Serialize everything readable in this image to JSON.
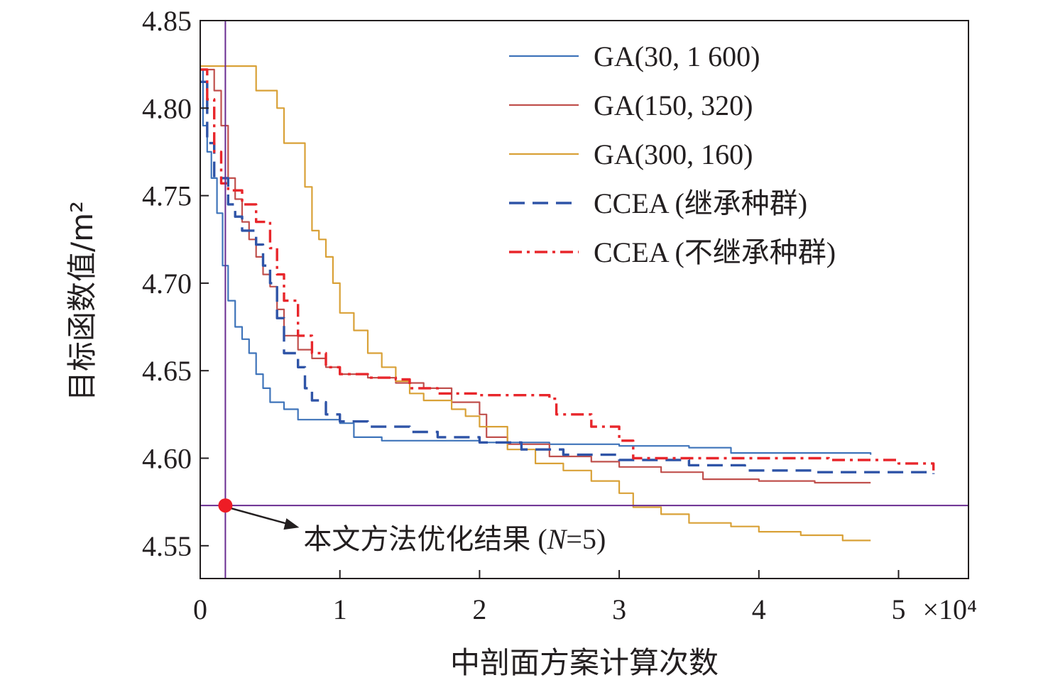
{
  "chart_data": {
    "type": "line",
    "xlabel": "中剖面方案计算次数",
    "ylabel": "目标函数值/m²",
    "x_multiplier": "×10⁴",
    "xlim": [
      0,
      5.5
    ],
    "ylim": [
      4.53,
      4.85
    ],
    "x_ticks": [
      "0",
      "1",
      "2",
      "3",
      "4",
      "5"
    ],
    "y_ticks": [
      "4.55",
      "4.60",
      "4.65",
      "4.70",
      "4.75",
      "4.80",
      "4.85"
    ],
    "legend_position": "top-right",
    "grid": false,
    "series": [
      {
        "name": "GA(30, 1 600)",
        "color": "#3f74ba",
        "style": "solid",
        "points": [
          [
            0,
            4.822
          ],
          [
            0.02,
            4.79
          ],
          [
            0.05,
            4.775
          ],
          [
            0.08,
            4.76
          ],
          [
            0.12,
            4.74
          ],
          [
            0.16,
            4.71
          ],
          [
            0.2,
            4.69
          ],
          [
            0.25,
            4.675
          ],
          [
            0.3,
            4.668
          ],
          [
            0.35,
            4.66
          ],
          [
            0.4,
            4.648
          ],
          [
            0.45,
            4.64
          ],
          [
            0.5,
            4.632
          ],
          [
            0.6,
            4.628
          ],
          [
            0.7,
            4.622
          ],
          [
            0.8,
            4.622
          ],
          [
            0.9,
            4.622
          ],
          [
            1.0,
            4.62
          ],
          [
            1.1,
            4.612
          ],
          [
            1.3,
            4.61
          ],
          [
            1.6,
            4.61
          ],
          [
            2.0,
            4.609
          ],
          [
            2.5,
            4.608
          ],
          [
            3.0,
            4.607
          ],
          [
            3.5,
            4.606
          ],
          [
            3.8,
            4.603
          ],
          [
            4.2,
            4.603
          ],
          [
            4.8,
            4.602
          ]
        ]
      },
      {
        "name": "GA(150, 320)",
        "color": "#c0504d",
        "style": "solid",
        "points": [
          [
            0,
            4.822
          ],
          [
            0.1,
            4.81
          ],
          [
            0.15,
            4.79
          ],
          [
            0.2,
            4.76
          ],
          [
            0.25,
            4.748
          ],
          [
            0.3,
            4.735
          ],
          [
            0.35,
            4.725
          ],
          [
            0.4,
            4.715
          ],
          [
            0.45,
            4.705
          ],
          [
            0.5,
            4.698
          ],
          [
            0.55,
            4.685
          ],
          [
            0.6,
            4.67
          ],
          [
            0.7,
            4.662
          ],
          [
            0.8,
            4.657
          ],
          [
            0.9,
            4.652
          ],
          [
            1.0,
            4.648
          ],
          [
            1.2,
            4.646
          ],
          [
            1.4,
            4.643
          ],
          [
            1.6,
            4.64
          ],
          [
            1.8,
            4.632
          ],
          [
            2.0,
            4.625
          ],
          [
            2.05,
            4.612
          ],
          [
            2.2,
            4.608
          ],
          [
            2.5,
            4.601
          ],
          [
            2.8,
            4.598
          ],
          [
            3.0,
            4.595
          ],
          [
            3.3,
            4.592
          ],
          [
            3.6,
            4.588
          ],
          [
            4.0,
            4.587
          ],
          [
            4.4,
            4.586
          ],
          [
            4.8,
            4.586
          ]
        ]
      },
      {
        "name": "GA(300, 160)",
        "color": "#d9a137",
        "style": "solid",
        "points": [
          [
            0,
            4.824
          ],
          [
            0.2,
            4.824
          ],
          [
            0.36,
            4.824
          ],
          [
            0.4,
            4.81
          ],
          [
            0.55,
            4.8
          ],
          [
            0.6,
            4.78
          ],
          [
            0.75,
            4.755
          ],
          [
            0.8,
            4.73
          ],
          [
            0.85,
            4.725
          ],
          [
            0.9,
            4.715
          ],
          [
            0.95,
            4.7
          ],
          [
            1.0,
            4.683
          ],
          [
            1.1,
            4.673
          ],
          [
            1.2,
            4.66
          ],
          [
            1.3,
            4.652
          ],
          [
            1.4,
            4.644
          ],
          [
            1.5,
            4.637
          ],
          [
            1.6,
            4.633
          ],
          [
            1.8,
            4.628
          ],
          [
            1.9,
            4.624
          ],
          [
            2.0,
            4.618
          ],
          [
            2.2,
            4.605
          ],
          [
            2.4,
            4.597
          ],
          [
            2.6,
            4.593
          ],
          [
            2.8,
            4.587
          ],
          [
            3.0,
            4.58
          ],
          [
            3.1,
            4.572
          ],
          [
            3.3,
            4.568
          ],
          [
            3.5,
            4.563
          ],
          [
            3.8,
            4.561
          ],
          [
            4.0,
            4.558
          ],
          [
            4.3,
            4.556
          ],
          [
            4.6,
            4.553
          ],
          [
            4.8,
            4.553
          ]
        ]
      },
      {
        "name": "CCEA (继承种群)",
        "color": "#2f54a7",
        "style": "dashed",
        "points": [
          [
            0,
            4.815
          ],
          [
            0.05,
            4.78
          ],
          [
            0.1,
            4.76
          ],
          [
            0.2,
            4.745
          ],
          [
            0.25,
            4.738
          ],
          [
            0.3,
            4.73
          ],
          [
            0.4,
            4.722
          ],
          [
            0.45,
            4.71
          ],
          [
            0.5,
            4.7
          ],
          [
            0.55,
            4.68
          ],
          [
            0.6,
            4.66
          ],
          [
            0.7,
            4.652
          ],
          [
            0.75,
            4.64
          ],
          [
            0.8,
            4.633
          ],
          [
            0.85,
            4.632
          ],
          [
            0.9,
            4.625
          ],
          [
            1.0,
            4.621
          ],
          [
            1.2,
            4.618
          ],
          [
            1.5,
            4.615
          ],
          [
            1.7,
            4.612
          ],
          [
            2.0,
            4.609
          ],
          [
            2.3,
            4.605
          ],
          [
            2.6,
            4.602
          ],
          [
            3.0,
            4.599
          ],
          [
            3.5,
            4.596
          ],
          [
            3.9,
            4.593
          ],
          [
            4.4,
            4.592
          ],
          [
            5.0,
            4.592
          ],
          [
            5.25,
            4.591
          ]
        ]
      },
      {
        "name": "CCEA (不继承种群)",
        "color": "#e8262b",
        "style": "dashdot",
        "points": [
          [
            0,
            4.822
          ],
          [
            0.05,
            4.805
          ],
          [
            0.1,
            4.775
          ],
          [
            0.15,
            4.757
          ],
          [
            0.2,
            4.753
          ],
          [
            0.3,
            4.745
          ],
          [
            0.4,
            4.735
          ],
          [
            0.5,
            4.72
          ],
          [
            0.55,
            4.705
          ],
          [
            0.6,
            4.69
          ],
          [
            0.7,
            4.67
          ],
          [
            0.8,
            4.66
          ],
          [
            0.9,
            4.652
          ],
          [
            1.0,
            4.648
          ],
          [
            1.2,
            4.646
          ],
          [
            1.4,
            4.645
          ],
          [
            1.5,
            4.64
          ],
          [
            1.7,
            4.637
          ],
          [
            2.0,
            4.636
          ],
          [
            2.5,
            4.634
          ],
          [
            2.55,
            4.625
          ],
          [
            2.8,
            4.618
          ],
          [
            3.0,
            4.61
          ],
          [
            3.1,
            4.6
          ],
          [
            3.5,
            4.6
          ],
          [
            4.0,
            4.6
          ],
          [
            4.5,
            4.599
          ],
          [
            5.0,
            4.597
          ],
          [
            5.25,
            4.593
          ]
        ]
      }
    ],
    "reference": {
      "x": 0.18,
      "y": 4.573,
      "label": "本文方法优化结果 (N=5)",
      "label_prefix": "本文方法优化结果 (",
      "label_var": "N",
      "label_suffix": "=5)",
      "line_color": "#6a2c91",
      "marker_color": "#ee1c25"
    }
  }
}
